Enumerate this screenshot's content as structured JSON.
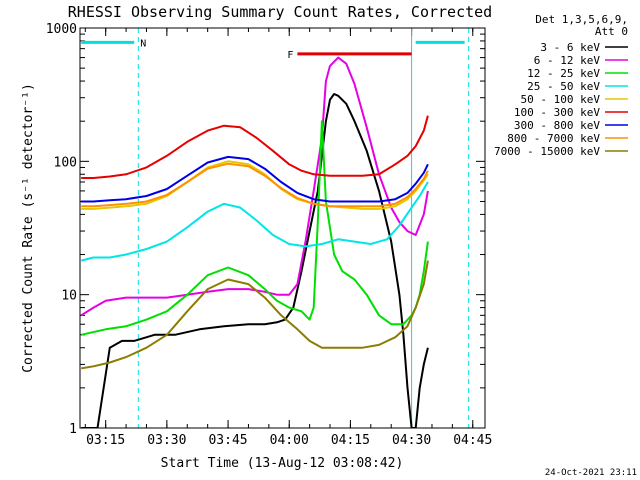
{
  "chart_data": {
    "type": "line",
    "title": "RHESSI Observing Summary Count Rates, Corrected",
    "xlabel": "Start Time (13-Aug-12 03:08:42)",
    "ylabel": "Corrected Count Rate (s⁻¹ detector⁻¹)",
    "y_scale": "log",
    "ylim": [
      1,
      1000
    ],
    "xlim": [
      "03:08:42",
      "04:48:00"
    ],
    "x_ticks": [
      "03:15",
      "03:30",
      "03:45",
      "04:00",
      "04:15",
      "04:30",
      "04:45"
    ],
    "y_ticks": [
      "1",
      "10",
      "100",
      "1000"
    ],
    "legend_header": [
      "Det 1,3,5,6,9,",
      "Att 0"
    ],
    "legend_position": "right",
    "timestamp": "24-Oct-2021 23:11",
    "flags": [
      {
        "label": "N",
        "color": "#00e0e0",
        "segments": [
          [
            "03:09",
            "03:22"
          ],
          [
            "04:31",
            "04:43"
          ]
        ],
        "level": 780
      },
      {
        "label": "F",
        "color": "#e00000",
        "segments": [
          [
            "04:02",
            "04:30"
          ]
        ],
        "level": 640
      }
    ],
    "vertical_lines": [
      {
        "time": "03:23",
        "color": "#00e0e0",
        "style": "dashed"
      },
      {
        "time": "04:30",
        "color": "#00e0e0",
        "style": "solid"
      },
      {
        "time": "04:44",
        "color": "#00e0e0",
        "style": "dashed"
      }
    ],
    "series": [
      {
        "name": "3 - 6 keV",
        "color": "#000000",
        "x": [
          "03:09",
          "03:13",
          "03:16",
          "03:19",
          "03:22",
          "03:27",
          "03:32",
          "03:38",
          "03:44",
          "03:50",
          "03:54",
          "03:57",
          "03:59",
          "04:01",
          "04:03",
          "04:05",
          "04:07",
          "04:09",
          "04:10",
          "04:11",
          "04:12",
          "04:14",
          "04:16",
          "04:19",
          "04:22",
          "04:25",
          "04:27",
          "04:28",
          "04:29",
          "04:30",
          "04:31",
          "04:32",
          "04:33",
          "04:34"
        ],
        "y": [
          1,
          1,
          4,
          4.5,
          4.5,
          5,
          5,
          5.5,
          5.8,
          6,
          6,
          6.2,
          6.5,
          8,
          15,
          30,
          60,
          200,
          290,
          320,
          310,
          270,
          200,
          120,
          60,
          25,
          10,
          5,
          2,
          1,
          1,
          2,
          3,
          4
        ]
      },
      {
        "name": "6 - 12 keV",
        "color": "#e600e6",
        "x": [
          "03:09",
          "03:12",
          "03:15",
          "03:20",
          "03:25",
          "03:30",
          "03:35",
          "03:40",
          "03:45",
          "03:50",
          "03:54",
          "03:57",
          "04:00",
          "04:02",
          "04:04",
          "04:06",
          "04:08",
          "04:09",
          "04:10",
          "04:12",
          "04:14",
          "04:16",
          "04:19",
          "04:22",
          "04:25",
          "04:27",
          "04:29",
          "04:31",
          "04:33",
          "04:34"
        ],
        "y": [
          7,
          8,
          9,
          9.5,
          9.5,
          9.5,
          10,
          10.5,
          11,
          11,
          10.5,
          10,
          10,
          12,
          25,
          60,
          150,
          400,
          520,
          600,
          540,
          380,
          180,
          80,
          45,
          35,
          30,
          28,
          40,
          60
        ]
      },
      {
        "name": "12 - 25 keV",
        "color": "#00e000",
        "x": [
          "03:09",
          "03:15",
          "03:20",
          "03:25",
          "03:30",
          "03:35",
          "03:40",
          "03:45",
          "03:50",
          "03:54",
          "03:57",
          "04:00",
          "04:03",
          "04:05",
          "04:06",
          "04:07",
          "04:08",
          "04:09",
          "04:11",
          "04:13",
          "04:16",
          "04:19",
          "04:22",
          "04:25",
          "04:28",
          "04:30",
          "04:31",
          "04:32",
          "04:33",
          "04:34"
        ],
        "y": [
          5,
          5.5,
          5.8,
          6.5,
          7.5,
          10,
          14,
          16,
          14,
          11,
          9,
          8,
          7.5,
          6.5,
          8,
          35,
          200,
          50,
          20,
          15,
          13,
          10,
          7,
          6,
          6,
          7,
          8,
          10,
          15,
          25
        ]
      },
      {
        "name": "25 - 50 keV",
        "color": "#00e6e6",
        "x": [
          "03:09",
          "03:12",
          "03:16",
          "03:20",
          "03:25",
          "03:30",
          "03:35",
          "03:40",
          "03:44",
          "03:48",
          "03:52",
          "03:56",
          "04:00",
          "04:04",
          "04:08",
          "04:12",
          "04:16",
          "04:20",
          "04:24",
          "04:27",
          "04:30",
          "04:32",
          "04:34"
        ],
        "y": [
          18,
          19,
          19,
          20,
          22,
          25,
          32,
          42,
          48,
          45,
          36,
          28,
          24,
          23,
          24,
          26,
          25,
          24,
          26,
          33,
          45,
          55,
          70
        ]
      },
      {
        "name": "50 - 100 keV",
        "color": "#e6c800",
        "x": [
          "03:09",
          "03:12",
          "03:16",
          "03:20",
          "03:25",
          "03:30",
          "03:35",
          "03:40",
          "03:45",
          "03:50",
          "03:54",
          "03:58",
          "04:02",
          "04:06",
          "04:10",
          "04:14",
          "04:18",
          "04:22",
          "04:26",
          "04:29",
          "04:31",
          "04:33",
          "04:34"
        ],
        "y": [
          44,
          44,
          45,
          46,
          48,
          55,
          70,
          90,
          100,
          95,
          80,
          62,
          52,
          48,
          46,
          45,
          44,
          44,
          46,
          52,
          60,
          72,
          80
        ]
      },
      {
        "name": "100 - 300 keV",
        "color": "#e60000",
        "x": [
          "03:09",
          "03:12",
          "03:16",
          "03:20",
          "03:25",
          "03:30",
          "03:35",
          "03:40",
          "03:44",
          "03:48",
          "03:52",
          "03:56",
          "04:00",
          "04:03",
          "04:06",
          "04:10",
          "04:14",
          "04:18",
          "04:22",
          "04:26",
          "04:29",
          "04:31",
          "04:33",
          "04:34"
        ],
        "y": [
          75,
          75,
          77,
          80,
          90,
          110,
          140,
          170,
          185,
          180,
          150,
          120,
          95,
          85,
          80,
          78,
          78,
          78,
          80,
          95,
          110,
          130,
          170,
          220
        ]
      },
      {
        "name": "300 - 800 keV",
        "color": "#0000e6",
        "x": [
          "03:09",
          "03:12",
          "03:16",
          "03:20",
          "03:25",
          "03:30",
          "03:35",
          "03:40",
          "03:45",
          "03:50",
          "03:54",
          "03:58",
          "04:02",
          "04:06",
          "04:10",
          "04:14",
          "04:18",
          "04:22",
          "04:26",
          "04:29",
          "04:31",
          "04:33",
          "04:34"
        ],
        "y": [
          50,
          50,
          51,
          52,
          55,
          62,
          78,
          98,
          108,
          104,
          88,
          70,
          58,
          52,
          50,
          50,
          50,
          50,
          52,
          58,
          68,
          82,
          95
        ]
      },
      {
        "name": "800 - 7000 keV",
        "color": "#ff9000",
        "x": [
          "03:09",
          "03:12",
          "03:16",
          "03:20",
          "03:25",
          "03:30",
          "03:35",
          "03:40",
          "03:45",
          "03:50",
          "03:54",
          "03:58",
          "04:02",
          "04:06",
          "04:10",
          "04:14",
          "04:18",
          "04:22",
          "04:26",
          "04:29",
          "04:31",
          "04:33",
          "04:34"
        ],
        "y": [
          46,
          46,
          47,
          48,
          50,
          56,
          70,
          88,
          96,
          92,
          78,
          63,
          53,
          48,
          46,
          46,
          46,
          46,
          48,
          54,
          62,
          74,
          85
        ]
      },
      {
        "name": "7000 - 15000 keV",
        "color": "#8b7d00",
        "x": [
          "03:09",
          "03:12",
          "03:16",
          "03:20",
          "03:25",
          "03:30",
          "03:35",
          "03:40",
          "03:45",
          "03:50",
          "03:54",
          "03:58",
          "04:02",
          "04:05",
          "04:08",
          "04:11",
          "04:14",
          "04:18",
          "04:22",
          "04:26",
          "04:29",
          "04:31",
          "04:33",
          "04:34"
        ],
        "y": [
          2.8,
          2.9,
          3.1,
          3.4,
          4.0,
          5.0,
          7.5,
          11,
          13,
          12,
          9.5,
          7,
          5.5,
          4.5,
          4.0,
          4.0,
          4.0,
          4.0,
          4.2,
          4.8,
          5.8,
          8,
          12,
          18
        ]
      }
    ]
  }
}
